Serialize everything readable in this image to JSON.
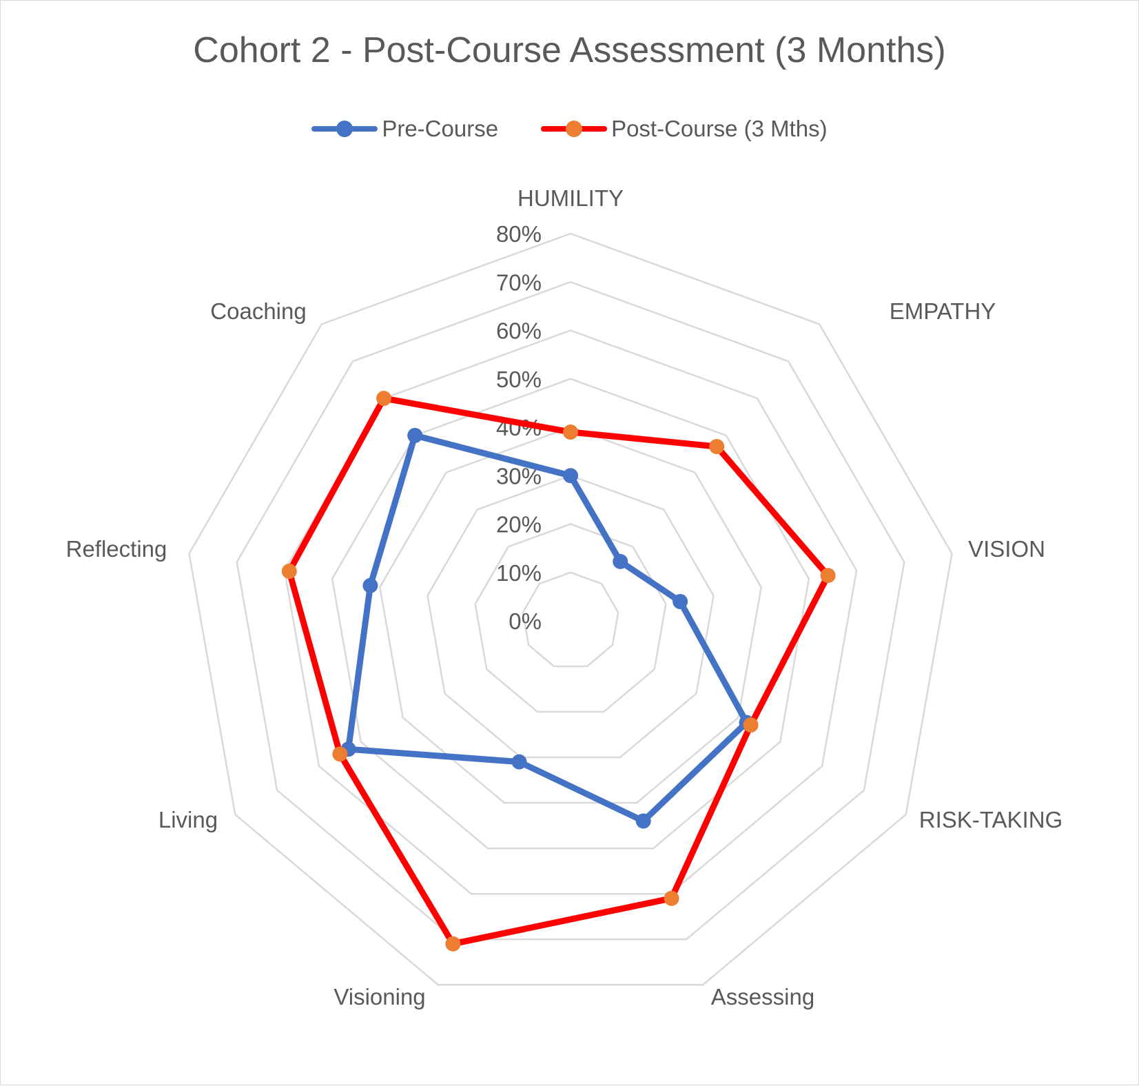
{
  "chart_data": {
    "type": "radar",
    "title": "Cohort 2 - Post-Course Assessment (3 Months)",
    "categories": [
      "HUMILITY",
      "EMPATHY",
      "VISION",
      "RISK-TAKING",
      "Assessing",
      "Visioning",
      "Living",
      "Reflecting",
      "Coaching"
    ],
    "series": [
      {
        "name": "Pre-Course",
        "color": "#4472C4",
        "marker_color": "#4472C4",
        "values": [
          30,
          16,
          23,
          42,
          44,
          31,
          53,
          42,
          50
        ]
      },
      {
        "name": "Post-Course (3 Mths)",
        "color": "#FF0000",
        "marker_color": "#ED7D31",
        "values": [
          39,
          47,
          54,
          43,
          61,
          71,
          55,
          59,
          60
        ]
      }
    ],
    "rlim": [
      0,
      80
    ],
    "tick_labels": [
      "0%",
      "10%",
      "20%",
      "30%",
      "40%",
      "50%",
      "60%",
      "70%",
      "80%"
    ],
    "grid": true,
    "gridline_color": "#D9D9D9",
    "legend_position": "top"
  },
  "legend": {
    "items": [
      {
        "label": "Pre-Course",
        "line_color": "#4472C4",
        "marker_color": "#4472C4"
      },
      {
        "label": "Post-Course (3 Mths)",
        "line_color": "#FF0000",
        "marker_color": "#ED7D31"
      }
    ]
  }
}
